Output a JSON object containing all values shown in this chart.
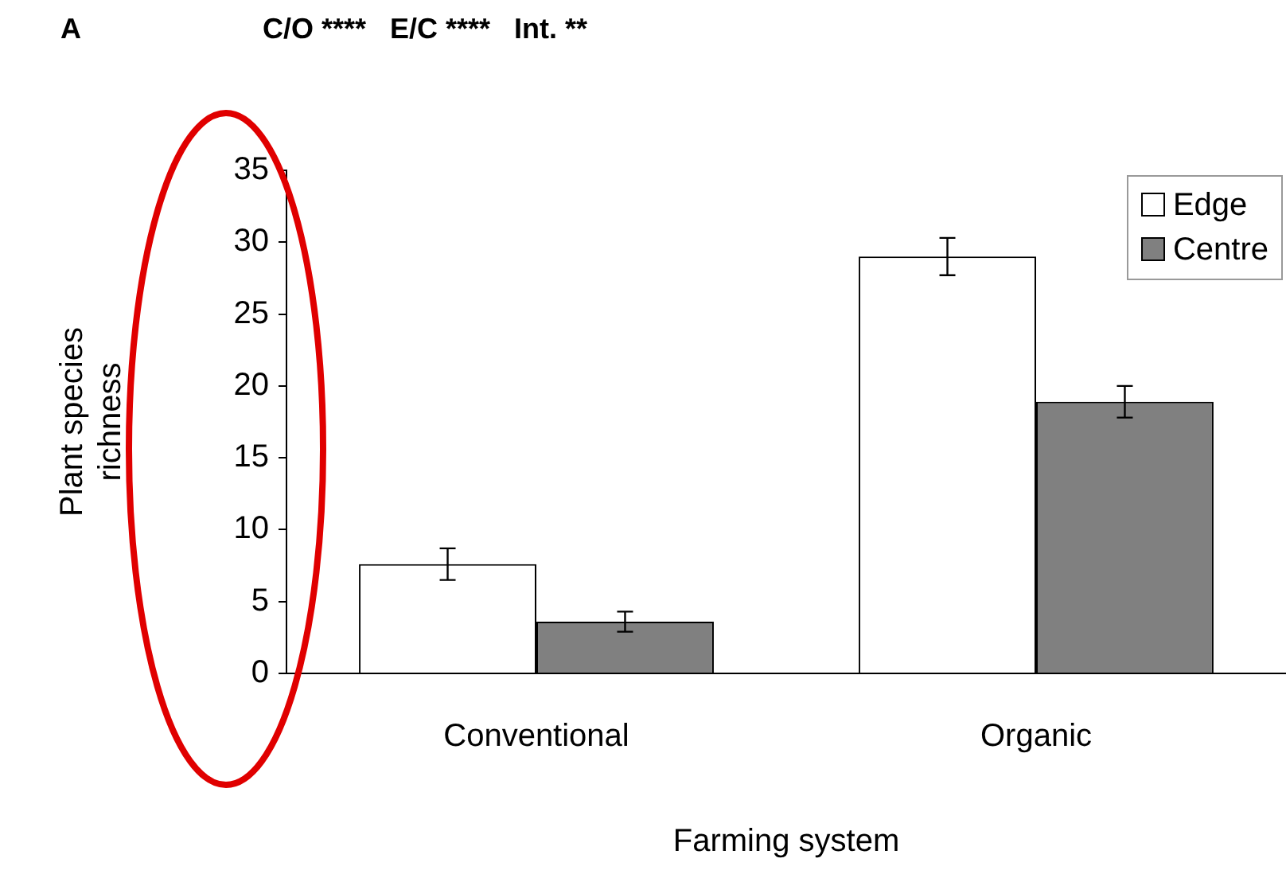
{
  "chart_data": {
    "type": "bar",
    "annotations": [
      "A",
      "C/O ****   E/C ****   Int. **"
    ],
    "xlabel": "Farming system",
    "ylabel": "Plant species richness",
    "categories": [
      "Conventional",
      "Organic"
    ],
    "series": [
      {
        "name": "Edge",
        "color": "#ffffff",
        "values": [
          7.6,
          29.0
        ],
        "errors": [
          1.1,
          1.3
        ]
      },
      {
        "name": "Centre",
        "color": "#808080",
        "values": [
          3.6,
          18.9
        ],
        "errors": [
          0.7,
          1.1
        ]
      }
    ],
    "ylim": [
      0,
      35
    ],
    "yticks": [
      0,
      5,
      10,
      15,
      20,
      25,
      30,
      35
    ],
    "grid": false,
    "legend": "top right"
  }
}
